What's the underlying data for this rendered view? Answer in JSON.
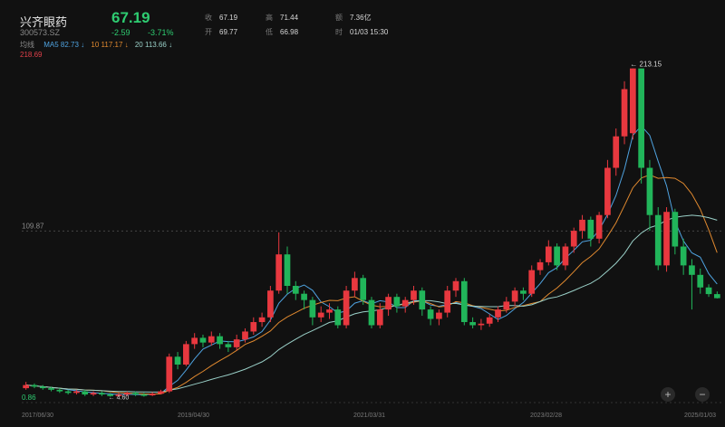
{
  "stock": {
    "name": "兴齐眼药",
    "code": "300573.SZ",
    "price": "67.19",
    "change": "-2.59",
    "change_pct": "-3.71%"
  },
  "stats": [
    {
      "label": "收",
      "value": "67.19"
    },
    {
      "label": "高",
      "value": "71.44"
    },
    {
      "label": "额",
      "value": "7.36亿"
    },
    {
      "label": "开",
      "value": "69.77"
    },
    {
      "label": "低",
      "value": "66.98"
    },
    {
      "label": "时",
      "value": "01/03 15:30"
    }
  ],
  "ma_legend": {
    "label": "均线",
    "ma5": "MA5 82.73 ↓",
    "ma10": "10 117.17 ↓",
    "ma20": "20 113.66 ↓"
  },
  "axis": {
    "top_value": "218.69",
    "mid_value": "109.87",
    "bottom_value": "0.86",
    "x_labels": [
      "2017/06/30",
      "2019/04/30",
      "2021/03/31",
      "2023/02/28",
      "2025/01/03"
    ]
  },
  "annotations": {
    "high_label": "← 213.15",
    "low_label": "← 4.60"
  },
  "controls": {
    "zoom_in": "+",
    "zoom_out": "−"
  },
  "colors": {
    "up": "#e8383f",
    "down": "#21b55a",
    "ma5": "#4fa3e0",
    "ma10": "#e0892f",
    "ma20": "#9ad0c8"
  },
  "chart_data": {
    "type": "candlestick",
    "y_range": [
      0.86,
      218.69
    ],
    "candles": [
      {
        "o": 10,
        "c": 12,
        "h": 14,
        "l": 9
      },
      {
        "o": 12,
        "c": 11,
        "h": 13,
        "l": 10
      },
      {
        "o": 11,
        "c": 10,
        "h": 12,
        "l": 9
      },
      {
        "o": 10,
        "c": 9,
        "h": 11,
        "l": 8
      },
      {
        "o": 9,
        "c": 8,
        "h": 10,
        "l": 7
      },
      {
        "o": 8,
        "c": 7,
        "h": 9,
        "l": 6
      },
      {
        "o": 7,
        "c": 8,
        "h": 9,
        "l": 6
      },
      {
        "o": 8,
        "c": 6,
        "h": 9,
        "l": 5
      },
      {
        "o": 6,
        "c": 7,
        "h": 8,
        "l": 5
      },
      {
        "o": 7,
        "c": 6,
        "h": 8,
        "l": 5
      },
      {
        "o": 6,
        "c": 5,
        "h": 7,
        "l": 4.6
      },
      {
        "o": 5,
        "c": 6,
        "h": 7,
        "l": 4.6
      },
      {
        "o": 6,
        "c": 7,
        "h": 8,
        "l": 5
      },
      {
        "o": 7,
        "c": 6,
        "h": 8,
        "l": 5
      },
      {
        "o": 6,
        "c": 5.5,
        "h": 7,
        "l": 4.6
      },
      {
        "o": 5.5,
        "c": 6.5,
        "h": 7.5,
        "l": 5
      },
      {
        "o": 6.5,
        "c": 8,
        "h": 9,
        "l": 6
      },
      {
        "o": 8,
        "c": 30,
        "h": 32,
        "l": 7
      },
      {
        "o": 30,
        "c": 25,
        "h": 33,
        "l": 22
      },
      {
        "o": 25,
        "c": 38,
        "h": 40,
        "l": 24
      },
      {
        "o": 38,
        "c": 42,
        "h": 45,
        "l": 35
      },
      {
        "o": 42,
        "c": 39,
        "h": 44,
        "l": 36
      },
      {
        "o": 39,
        "c": 43,
        "h": 46,
        "l": 37
      },
      {
        "o": 43,
        "c": 38,
        "h": 45,
        "l": 35
      },
      {
        "o": 38,
        "c": 36,
        "h": 40,
        "l": 33
      },
      {
        "o": 36,
        "c": 41,
        "h": 44,
        "l": 34
      },
      {
        "o": 41,
        "c": 46,
        "h": 48,
        "l": 39
      },
      {
        "o": 46,
        "c": 52,
        "h": 55,
        "l": 44
      },
      {
        "o": 52,
        "c": 55,
        "h": 58,
        "l": 49
      },
      {
        "o": 55,
        "c": 72,
        "h": 75,
        "l": 52
      },
      {
        "o": 72,
        "c": 95,
        "h": 109,
        "l": 70
      },
      {
        "o": 95,
        "c": 75,
        "h": 100,
        "l": 70
      },
      {
        "o": 75,
        "c": 70,
        "h": 78,
        "l": 66
      },
      {
        "o": 70,
        "c": 66,
        "h": 72,
        "l": 60
      },
      {
        "o": 66,
        "c": 55,
        "h": 68,
        "l": 50
      },
      {
        "o": 55,
        "c": 58,
        "h": 62,
        "l": 52
      },
      {
        "o": 58,
        "c": 60,
        "h": 64,
        "l": 54
      },
      {
        "o": 60,
        "c": 50,
        "h": 62,
        "l": 48
      },
      {
        "o": 50,
        "c": 72,
        "h": 75,
        "l": 48
      },
      {
        "o": 72,
        "c": 80,
        "h": 84,
        "l": 68
      },
      {
        "o": 80,
        "c": 66,
        "h": 82,
        "l": 63
      },
      {
        "o": 66,
        "c": 50,
        "h": 68,
        "l": 48
      },
      {
        "o": 50,
        "c": 60,
        "h": 64,
        "l": 48
      },
      {
        "o": 60,
        "c": 68,
        "h": 70,
        "l": 56
      },
      {
        "o": 68,
        "c": 62,
        "h": 70,
        "l": 58
      },
      {
        "o": 62,
        "c": 66,
        "h": 68,
        "l": 58
      },
      {
        "o": 66,
        "c": 72,
        "h": 75,
        "l": 63
      },
      {
        "o": 72,
        "c": 60,
        "h": 74,
        "l": 56
      },
      {
        "o": 60,
        "c": 54,
        "h": 62,
        "l": 50
      },
      {
        "o": 54,
        "c": 58,
        "h": 60,
        "l": 50
      },
      {
        "o": 58,
        "c": 72,
        "h": 75,
        "l": 55
      },
      {
        "o": 72,
        "c": 78,
        "h": 80,
        "l": 68
      },
      {
        "o": 78,
        "c": 52,
        "h": 80,
        "l": 50
      },
      {
        "o": 52,
        "c": 50,
        "h": 55,
        "l": 48
      },
      {
        "o": 50,
        "c": 51,
        "h": 54,
        "l": 47
      },
      {
        "o": 51,
        "c": 55,
        "h": 57,
        "l": 49
      },
      {
        "o": 55,
        "c": 60,
        "h": 62,
        "l": 52
      },
      {
        "o": 60,
        "c": 65,
        "h": 68,
        "l": 58
      },
      {
        "o": 65,
        "c": 72,
        "h": 74,
        "l": 62
      },
      {
        "o": 72,
        "c": 70,
        "h": 74,
        "l": 66
      },
      {
        "o": 70,
        "c": 85,
        "h": 88,
        "l": 68
      },
      {
        "o": 85,
        "c": 90,
        "h": 92,
        "l": 82
      },
      {
        "o": 90,
        "c": 100,
        "h": 104,
        "l": 88
      },
      {
        "o": 100,
        "c": 88,
        "h": 102,
        "l": 85
      },
      {
        "o": 88,
        "c": 100,
        "h": 102,
        "l": 85
      },
      {
        "o": 100,
        "c": 110,
        "h": 112,
        "l": 96
      },
      {
        "o": 110,
        "c": 117,
        "h": 120,
        "l": 105
      },
      {
        "o": 117,
        "c": 105,
        "h": 119,
        "l": 100
      },
      {
        "o": 105,
        "c": 120,
        "h": 122,
        "l": 102
      },
      {
        "o": 120,
        "c": 150,
        "h": 155,
        "l": 118
      },
      {
        "o": 150,
        "c": 170,
        "h": 175,
        "l": 145
      },
      {
        "o": 170,
        "c": 200,
        "h": 205,
        "l": 165
      },
      {
        "o": 172,
        "c": 213.15,
        "h": 213.15,
        "l": 168
      },
      {
        "o": 213.15,
        "c": 150,
        "h": 213,
        "l": 140
      },
      {
        "o": 150,
        "c": 120,
        "h": 155,
        "l": 110
      },
      {
        "o": 120,
        "c": 88,
        "h": 125,
        "l": 85
      },
      {
        "o": 88,
        "c": 122,
        "h": 125,
        "l": 84
      },
      {
        "o": 122,
        "c": 100,
        "h": 124,
        "l": 95
      },
      {
        "o": 100,
        "c": 88,
        "h": 105,
        "l": 82
      },
      {
        "o": 88,
        "c": 82,
        "h": 92,
        "l": 60
      },
      {
        "o": 82,
        "c": 74,
        "h": 86,
        "l": 70
      },
      {
        "o": 74,
        "c": 69.78,
        "h": 76,
        "l": 68
      },
      {
        "o": 69.77,
        "c": 67.19,
        "h": 71.44,
        "l": 66.98
      }
    ]
  }
}
